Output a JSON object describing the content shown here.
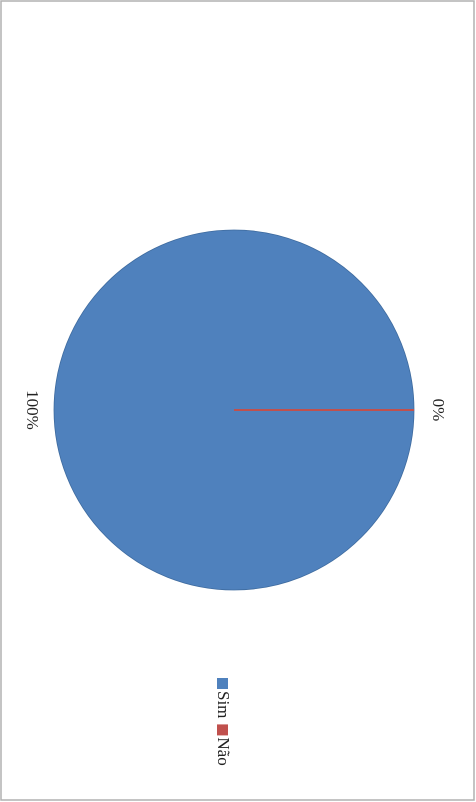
{
  "chart_data": {
    "type": "pie",
    "categories": [
      "Sim",
      "Não"
    ],
    "values": [
      100,
      0
    ],
    "value_labels": [
      "100%",
      "0%"
    ],
    "colors": [
      "#4f81bd",
      "#c0504d"
    ],
    "legend": "bottom"
  }
}
